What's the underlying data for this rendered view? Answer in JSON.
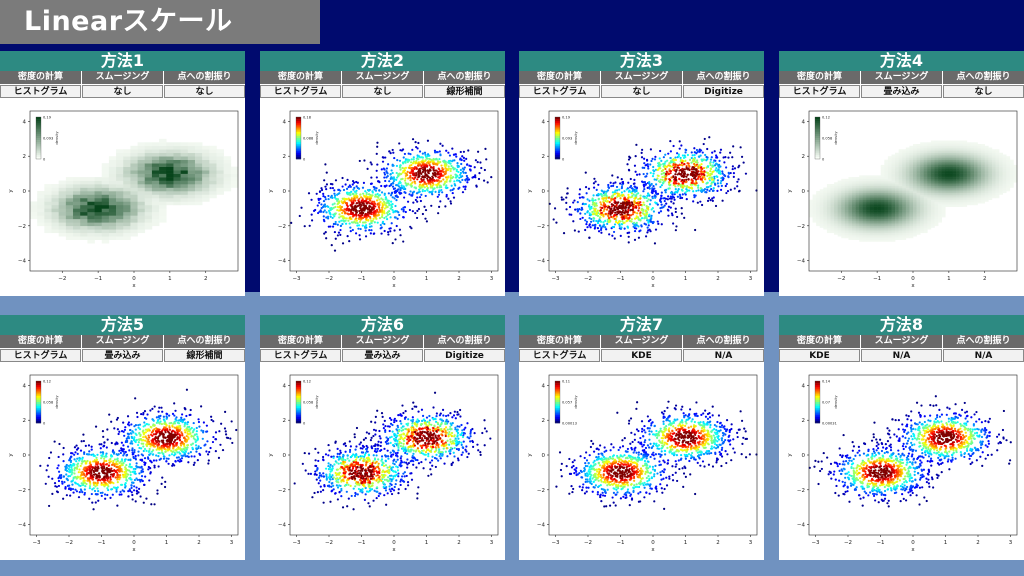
{
  "header": {
    "title": "Linearスケール"
  },
  "columns": [
    "密度の計算",
    "スムージング",
    "点への割振り"
  ],
  "panels": [
    {
      "title": "方法1",
      "values": [
        "ヒストグラム",
        "なし",
        "なし"
      ],
      "style": "green-hist",
      "colorbar": {
        "max": "0.19",
        "mid": "0.093",
        "min": "0"
      }
    },
    {
      "title": "方法2",
      "values": [
        "ヒストグラム",
        "なし",
        "線形補間"
      ],
      "style": "jet-smooth",
      "colorbar": {
        "max": "0.18",
        "mid": "0.088",
        "min": "0"
      }
    },
    {
      "title": "方法3",
      "values": [
        "ヒストグラム",
        "なし",
        "Digitize"
      ],
      "style": "jet-block",
      "colorbar": {
        "max": "0.19",
        "mid": "0.093",
        "min": "0"
      }
    },
    {
      "title": "方法4",
      "values": [
        "ヒストグラム",
        "畳み込み",
        "なし"
      ],
      "style": "green-smooth",
      "colorbar": {
        "max": "0.12",
        "mid": "0.058",
        "min": "0"
      }
    },
    {
      "title": "方法5",
      "values": [
        "ヒストグラム",
        "畳み込み",
        "線形補間"
      ],
      "style": "jet-smooth",
      "colorbar": {
        "max": "0.12",
        "mid": "0.058",
        "min": "0"
      }
    },
    {
      "title": "方法6",
      "values": [
        "ヒストグラム",
        "畳み込み",
        "Digitize"
      ],
      "style": "jet-block",
      "colorbar": {
        "max": "0.12",
        "mid": "0.058",
        "min": "0"
      }
    },
    {
      "title": "方法7",
      "values": [
        "ヒストグラム",
        "KDE",
        "N/A"
      ],
      "style": "jet-smooth",
      "colorbar": {
        "max": "0.11",
        "mid": "0.057",
        "min": "0.00013"
      }
    },
    {
      "title": "方法8",
      "values": [
        "KDE",
        "N/A",
        "N/A"
      ],
      "style": "jet-smooth",
      "colorbar": {
        "max": "0.14",
        "mid": "0.07",
        "min": "0.00031"
      }
    }
  ],
  "axes": {
    "xlabel": "x",
    "ylabel": "y",
    "colorbar_label": "density",
    "xticks_hist": [
      "−2",
      "−1",
      "0",
      "1",
      "2"
    ],
    "xticks_scatter": [
      "−3",
      "−2",
      "−1",
      "0",
      "1",
      "2",
      "3"
    ],
    "yticks": [
      "4",
      "2",
      "0",
      "−2",
      "−4"
    ]
  }
}
